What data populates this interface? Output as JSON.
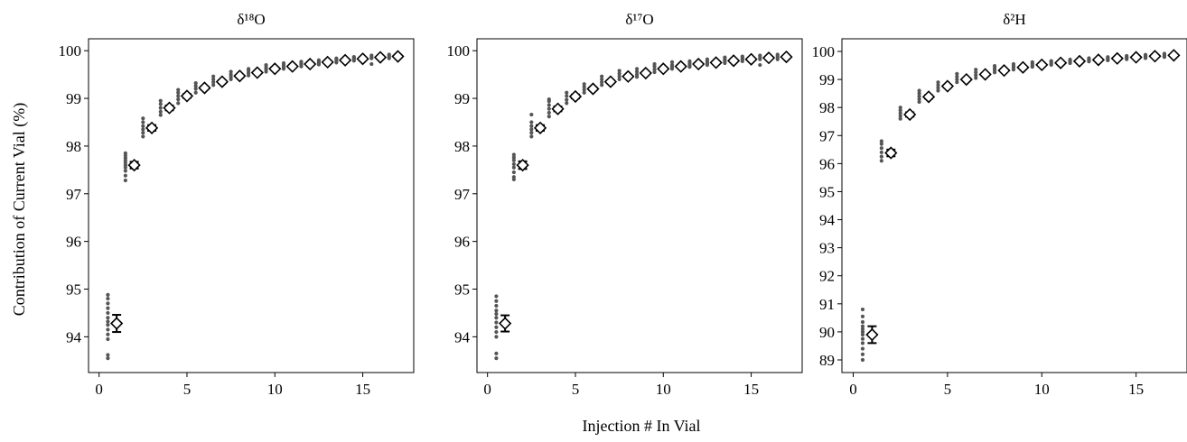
{
  "figure": {
    "ylabel": "Contribution of Current Vial (%)",
    "xlabel": "Injection # In Vial"
  },
  "chart_data": [
    {
      "type": "scatter",
      "title": "δ¹⁸O",
      "xlim": [
        -0.6,
        17.9
      ],
      "ylim": [
        93.25,
        100.25
      ],
      "xticks": [
        0,
        5,
        10,
        15
      ],
      "yticks": [
        94,
        95,
        96,
        97,
        98,
        99,
        100
      ],
      "raw_series": [
        {
          "x": 0.5,
          "y": [
            93.55,
            93.62,
            93.95,
            94.05,
            94.15,
            94.25,
            94.32,
            94.4,
            94.5,
            94.6,
            94.7,
            94.8,
            94.88
          ]
        },
        {
          "x": 1.5,
          "y": [
            97.28,
            97.38,
            97.48,
            97.55,
            97.6,
            97.65,
            97.7,
            97.75,
            97.8,
            97.85
          ]
        },
        {
          "x": 2.5,
          "y": [
            98.2,
            98.28,
            98.35,
            98.42,
            98.5,
            98.58
          ]
        },
        {
          "x": 3.5,
          "y": [
            98.65,
            98.72,
            98.8,
            98.88,
            98.95
          ]
        },
        {
          "x": 4.5,
          "y": [
            98.9,
            98.98,
            99.05,
            99.12,
            99.18
          ]
        },
        {
          "x": 5.5,
          "y": [
            99.12,
            99.2,
            99.26,
            99.32
          ]
        },
        {
          "x": 6.5,
          "y": [
            99.28,
            99.34,
            99.4,
            99.46
          ]
        },
        {
          "x": 7.5,
          "y": [
            99.4,
            99.45,
            99.5,
            99.56
          ]
        },
        {
          "x": 8.5,
          "y": [
            99.48,
            99.53,
            99.58,
            99.62
          ]
        },
        {
          "x": 9.5,
          "y": [
            99.56,
            99.61,
            99.65,
            99.7
          ]
        },
        {
          "x": 10.5,
          "y": [
            99.62,
            99.66,
            99.7,
            99.74
          ]
        },
        {
          "x": 11.5,
          "y": [
            99.67,
            99.71,
            99.74,
            99.77
          ]
        },
        {
          "x": 12.5,
          "y": [
            99.71,
            99.74,
            99.77,
            99.8
          ]
        },
        {
          "x": 13.5,
          "y": [
            99.75,
            99.78,
            99.81,
            99.84
          ]
        },
        {
          "x": 14.5,
          "y": [
            99.79,
            99.82,
            99.85,
            99.87
          ]
        },
        {
          "x": 15.5,
          "y": [
            99.72,
            99.84,
            99.87,
            99.9
          ]
        },
        {
          "x": 16.5,
          "y": [
            99.84,
            99.87,
            99.9,
            99.92
          ]
        }
      ],
      "mean_series": {
        "x": [
          1,
          2,
          3,
          4,
          5,
          6,
          7,
          8,
          9,
          10,
          11,
          12,
          13,
          14,
          15,
          16,
          17
        ],
        "y": [
          94.28,
          97.6,
          98.38,
          98.8,
          99.05,
          99.22,
          99.35,
          99.47,
          99.54,
          99.62,
          99.67,
          99.72,
          99.76,
          99.8,
          99.83,
          99.86,
          99.88
        ],
        "err": [
          0.18,
          0.07,
          0.06,
          0.05,
          0.04,
          0.03,
          0.03,
          0.02,
          0.02,
          0.02,
          0.02,
          0.02,
          0.02,
          0.02,
          0.02,
          0.02,
          0.02
        ]
      }
    },
    {
      "type": "scatter",
      "title": "δ¹⁷O",
      "xlim": [
        -0.6,
        17.9
      ],
      "ylim": [
        93.25,
        100.25
      ],
      "xticks": [
        0,
        5,
        10,
        15
      ],
      "yticks": [
        94,
        95,
        96,
        97,
        98,
        99,
        100
      ],
      "raw_series": [
        {
          "x": 0.5,
          "y": [
            93.55,
            93.65,
            94.0,
            94.1,
            94.2,
            94.3,
            94.4,
            94.48,
            94.55,
            94.65,
            94.75,
            94.85
          ]
        },
        {
          "x": 1.5,
          "y": [
            97.3,
            97.35,
            97.45,
            97.55,
            97.62,
            97.7,
            97.76,
            97.82
          ]
        },
        {
          "x": 2.5,
          "y": [
            98.2,
            98.28,
            98.35,
            98.42,
            98.5,
            98.66
          ]
        },
        {
          "x": 3.5,
          "y": [
            98.62,
            98.7,
            98.78,
            98.86,
            98.94,
            98.98
          ]
        },
        {
          "x": 4.5,
          "y": [
            98.9,
            98.97,
            99.05,
            99.12
          ]
        },
        {
          "x": 5.5,
          "y": [
            99.12,
            99.18,
            99.24,
            99.3
          ]
        },
        {
          "x": 6.5,
          "y": [
            99.28,
            99.34,
            99.4,
            99.46
          ]
        },
        {
          "x": 7.5,
          "y": [
            99.4,
            99.46,
            99.52,
            99.58
          ]
        },
        {
          "x": 8.5,
          "y": [
            99.45,
            99.5,
            99.56,
            99.62
          ]
        },
        {
          "x": 9.5,
          "y": [
            99.55,
            99.61,
            99.67,
            99.72
          ]
        },
        {
          "x": 10.5,
          "y": [
            99.62,
            99.66,
            99.7,
            99.76
          ]
        },
        {
          "x": 11.5,
          "y": [
            99.66,
            99.7,
            99.74,
            99.78
          ]
        },
        {
          "x": 12.5,
          "y": [
            99.7,
            99.74,
            99.78,
            99.82
          ]
        },
        {
          "x": 13.5,
          "y": [
            99.74,
            99.78,
            99.82,
            99.86
          ]
        },
        {
          "x": 14.5,
          "y": [
            99.78,
            99.82,
            99.85,
            99.88
          ]
        },
        {
          "x": 15.5,
          "y": [
            99.7,
            99.82,
            99.86,
            99.9
          ]
        },
        {
          "x": 16.5,
          "y": [
            99.82,
            99.86,
            99.89,
            99.92
          ]
        }
      ],
      "mean_series": {
        "x": [
          1,
          2,
          3,
          4,
          5,
          6,
          7,
          8,
          9,
          10,
          11,
          12,
          13,
          14,
          15,
          16,
          17
        ],
        "y": [
          94.28,
          97.6,
          98.38,
          98.78,
          99.04,
          99.2,
          99.35,
          99.46,
          99.53,
          99.62,
          99.67,
          99.72,
          99.75,
          99.79,
          99.82,
          99.85,
          99.87
        ],
        "err": [
          0.17,
          0.08,
          0.06,
          0.05,
          0.04,
          0.03,
          0.03,
          0.02,
          0.02,
          0.02,
          0.02,
          0.02,
          0.02,
          0.02,
          0.02,
          0.02,
          0.02
        ]
      }
    },
    {
      "type": "scatter",
      "title": "δ²H",
      "xlim": [
        -0.6,
        17.7
      ],
      "ylim": [
        88.55,
        100.45
      ],
      "xticks": [
        0,
        5,
        10,
        15
      ],
      "yticks": [
        89,
        90,
        91,
        92,
        93,
        94,
        95,
        96,
        97,
        98,
        99,
        100
      ],
      "raw_series": [
        {
          "x": 0.5,
          "y": [
            89.0,
            89.2,
            89.4,
            89.6,
            89.75,
            89.9,
            90.0,
            90.1,
            90.2,
            90.35,
            90.55,
            90.8
          ]
        },
        {
          "x": 1.5,
          "y": [
            96.1,
            96.25,
            96.4,
            96.55,
            96.7,
            96.8
          ]
        },
        {
          "x": 2.5,
          "y": [
            97.6,
            97.7,
            97.8,
            97.9,
            98.0
          ]
        },
        {
          "x": 3.5,
          "y": [
            98.2,
            98.3,
            98.4,
            98.5,
            98.6
          ]
        },
        {
          "x": 4.5,
          "y": [
            98.6,
            98.7,
            98.8,
            98.9
          ]
        },
        {
          "x": 5.5,
          "y": [
            98.9,
            99.0,
            99.1,
            99.2
          ]
        },
        {
          "x": 6.5,
          "y": [
            99.05,
            99.15,
            99.25,
            99.35
          ]
        },
        {
          "x": 7.5,
          "y": [
            99.25,
            99.33,
            99.4,
            99.48
          ]
        },
        {
          "x": 8.5,
          "y": [
            99.35,
            99.42,
            99.48,
            99.55
          ]
        },
        {
          "x": 9.5,
          "y": [
            99.45,
            99.5,
            99.56,
            99.62
          ]
        },
        {
          "x": 10.5,
          "y": [
            99.52,
            99.57,
            99.62,
            99.66
          ]
        },
        {
          "x": 11.5,
          "y": [
            99.58,
            99.62,
            99.67,
            99.71
          ]
        },
        {
          "x": 12.5,
          "y": [
            99.64,
            99.68,
            99.72,
            99.76
          ]
        },
        {
          "x": 13.5,
          "y": [
            99.68,
            99.72,
            99.76,
            99.8
          ]
        },
        {
          "x": 14.5,
          "y": [
            99.72,
            99.76,
            99.8,
            99.84
          ]
        },
        {
          "x": 15.5,
          "y": [
            99.76,
            99.8,
            99.84,
            99.88
          ]
        },
        {
          "x": 16.5,
          "y": [
            99.8,
            99.84,
            99.88,
            99.92
          ]
        }
      ],
      "mean_series": {
        "x": [
          1,
          2,
          3,
          4,
          5,
          6,
          7,
          8,
          9,
          10,
          11,
          12,
          13,
          14,
          15,
          16,
          17
        ],
        "y": [
          89.9,
          96.38,
          97.75,
          98.38,
          98.76,
          99.0,
          99.18,
          99.32,
          99.43,
          99.52,
          99.59,
          99.65,
          99.7,
          99.75,
          99.79,
          99.83,
          99.86
        ],
        "err": [
          0.3,
          0.12,
          0.08,
          0.06,
          0.05,
          0.04,
          0.03,
          0.03,
          0.03,
          0.02,
          0.02,
          0.02,
          0.02,
          0.02,
          0.02,
          0.02,
          0.02
        ]
      }
    }
  ]
}
